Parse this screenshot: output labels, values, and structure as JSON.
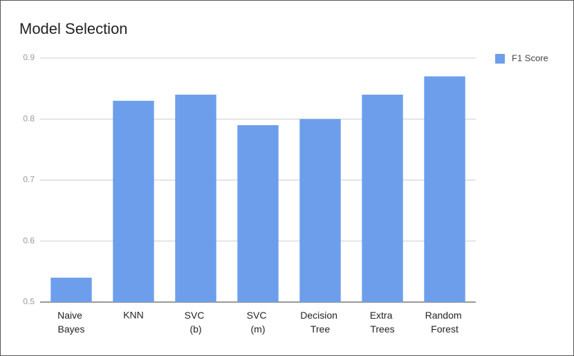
{
  "chart_data": {
    "type": "bar",
    "title": "Model Selection",
    "categories": [
      "Naive Bayes",
      "KNN",
      "SVC (b)",
      "SVC (m)",
      "Decision Tree",
      "Extra Trees",
      "Random Forest"
    ],
    "series": [
      {
        "name": "F1 Score",
        "color": "#6d9eeb",
        "values": [
          0.54,
          0.83,
          0.84,
          0.79,
          0.8,
          0.84,
          0.87
        ]
      }
    ],
    "ylim": [
      0.5,
      0.9
    ],
    "yticks": [
      0.5,
      0.6,
      0.7,
      0.8,
      0.9
    ],
    "grid": true,
    "legend": "right"
  }
}
